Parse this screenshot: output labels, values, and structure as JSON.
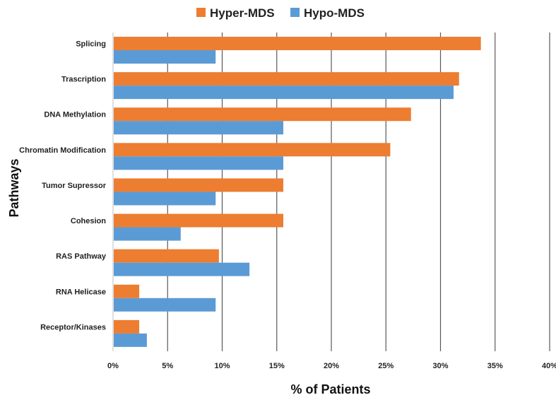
{
  "chart_data": {
    "type": "bar",
    "orientation": "horizontal",
    "title": "",
    "xlabel": "% of Patients",
    "ylabel": "Pathways",
    "xlim": [
      0,
      40
    ],
    "x_ticks": [
      "0%",
      "5%",
      "10%",
      "15%",
      "20%",
      "25%",
      "30%",
      "35%",
      "40%"
    ],
    "grid": "vertical",
    "legend_position": "top-center",
    "categories": [
      "Splicing",
      "Trascription",
      "DNA Methylation",
      "Chromatin Modification",
      "Tumor Supressor",
      "Cohesion",
      "RAS Pathway",
      "RNA Helicase",
      "Receptor/Kinases"
    ],
    "series": [
      {
        "name": "Hyper-MDS",
        "color": "#ed7d31",
        "values": [
          33.7,
          31.7,
          27.3,
          25.4,
          15.6,
          15.6,
          9.7,
          2.4,
          2.4
        ]
      },
      {
        "name": "Hypo-MDS",
        "color": "#5b9bd5",
        "values": [
          9.4,
          31.2,
          15.6,
          15.6,
          9.4,
          6.2,
          12.5,
          9.4,
          3.1
        ]
      }
    ]
  }
}
